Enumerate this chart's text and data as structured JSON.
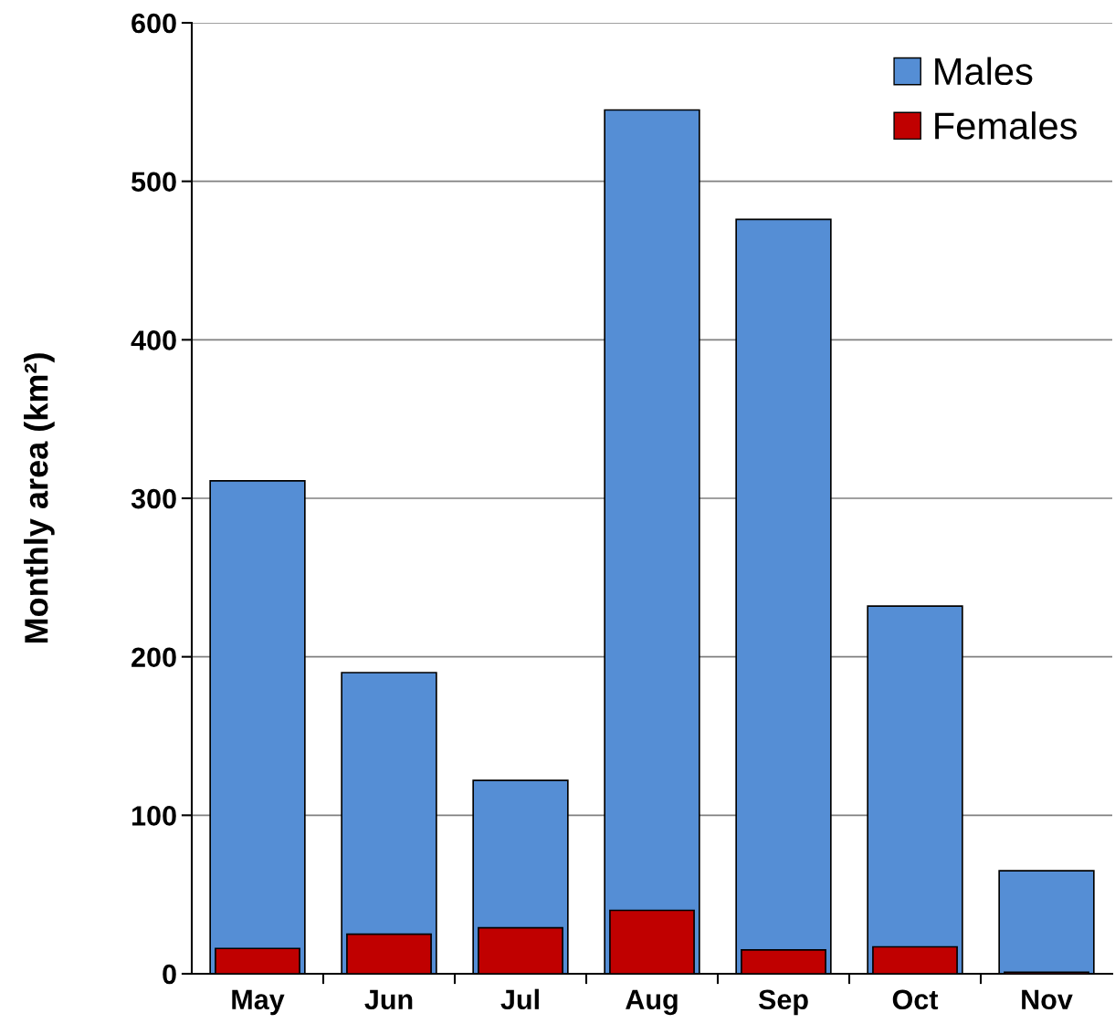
{
  "chart_data": {
    "type": "bar",
    "ylabel": "Monthly area (km²)",
    "categories": [
      "May",
      "Jun",
      "Jul",
      "Aug",
      "Sep",
      "Oct",
      "Nov"
    ],
    "series": [
      {
        "name": "Males",
        "color": "#558ed5",
        "values": [
          311,
          190,
          122,
          545,
          476,
          232,
          65
        ]
      },
      {
        "name": "Females",
        "color": "#c00000",
        "values": [
          16,
          25,
          29,
          40,
          15,
          17,
          1
        ]
      }
    ],
    "ylim": [
      0,
      600
    ],
    "yticks": [
      0,
      100,
      200,
      300,
      400,
      500,
      600
    ],
    "grid": "y",
    "legend": "top right"
  }
}
